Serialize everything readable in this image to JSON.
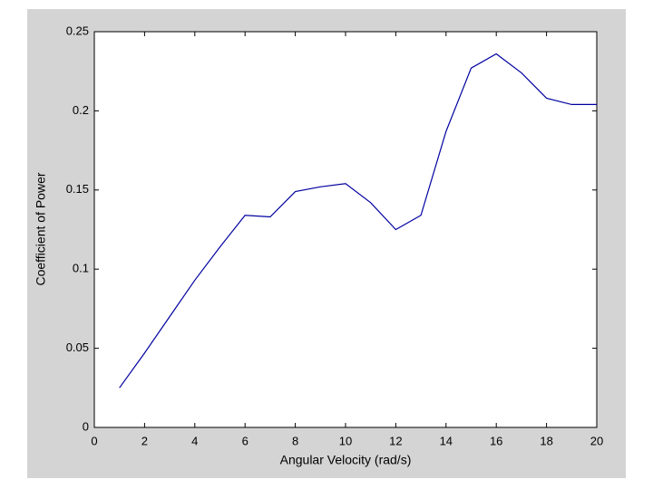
{
  "chart_data": {
    "type": "line",
    "x_label": "Angular Velocity (rad/s)",
    "y_label": "Coefficient of Power",
    "x": [
      1,
      2,
      3,
      4,
      5,
      6,
      7,
      8,
      9,
      10,
      11,
      12,
      13,
      14,
      15,
      16,
      17,
      18,
      19,
      20
    ],
    "series": [
      {
        "color": "#0000a0",
        "values": [
          0.025,
          0.047,
          0.07,
          0.093,
          0.114,
          0.134,
          0.133,
          0.149,
          0.152,
          0.154,
          0.142,
          0.125,
          0.134,
          0.187,
          0.227,
          0.236,
          0.224,
          0.208,
          0.204,
          0.204
        ]
      }
    ],
    "xlim": [
      0,
      20
    ],
    "xticks": [
      0,
      2,
      4,
      6,
      8,
      10,
      12,
      14,
      16,
      18,
      20
    ],
    "ylim": [
      0,
      0.25
    ],
    "yticks": [
      0,
      0.05,
      0.1,
      0.15,
      0.2,
      0.25
    ],
    "grid": false
  }
}
